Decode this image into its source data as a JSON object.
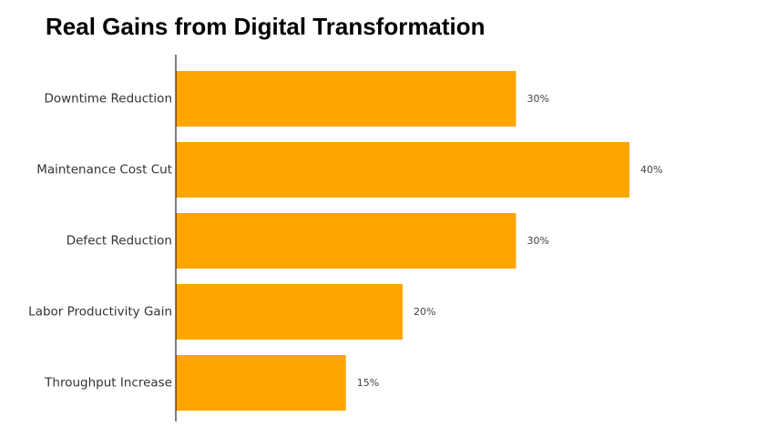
{
  "title": "Real Gains from Digital Transformation",
  "chart_data": {
    "type": "bar",
    "orientation": "horizontal",
    "title": "Real Gains from Digital Transformation",
    "categories": [
      "Downtime Reduction",
      "Maintenance Cost Cut",
      "Defect Reduction",
      "Labor Productivity Gain",
      "Throughput Increase"
    ],
    "values": [
      30,
      40,
      30,
      20,
      15
    ],
    "value_labels": [
      "30%",
      "40%",
      "30%",
      "20%",
      "15%"
    ],
    "xlabel": "",
    "ylabel": "",
    "xlim": [
      0,
      52
    ],
    "grid": false,
    "legend": "none",
    "colors": {
      "bar": "#FFA500",
      "axis": "#000000",
      "category_text": "#333333",
      "value_text": "#444444"
    }
  }
}
